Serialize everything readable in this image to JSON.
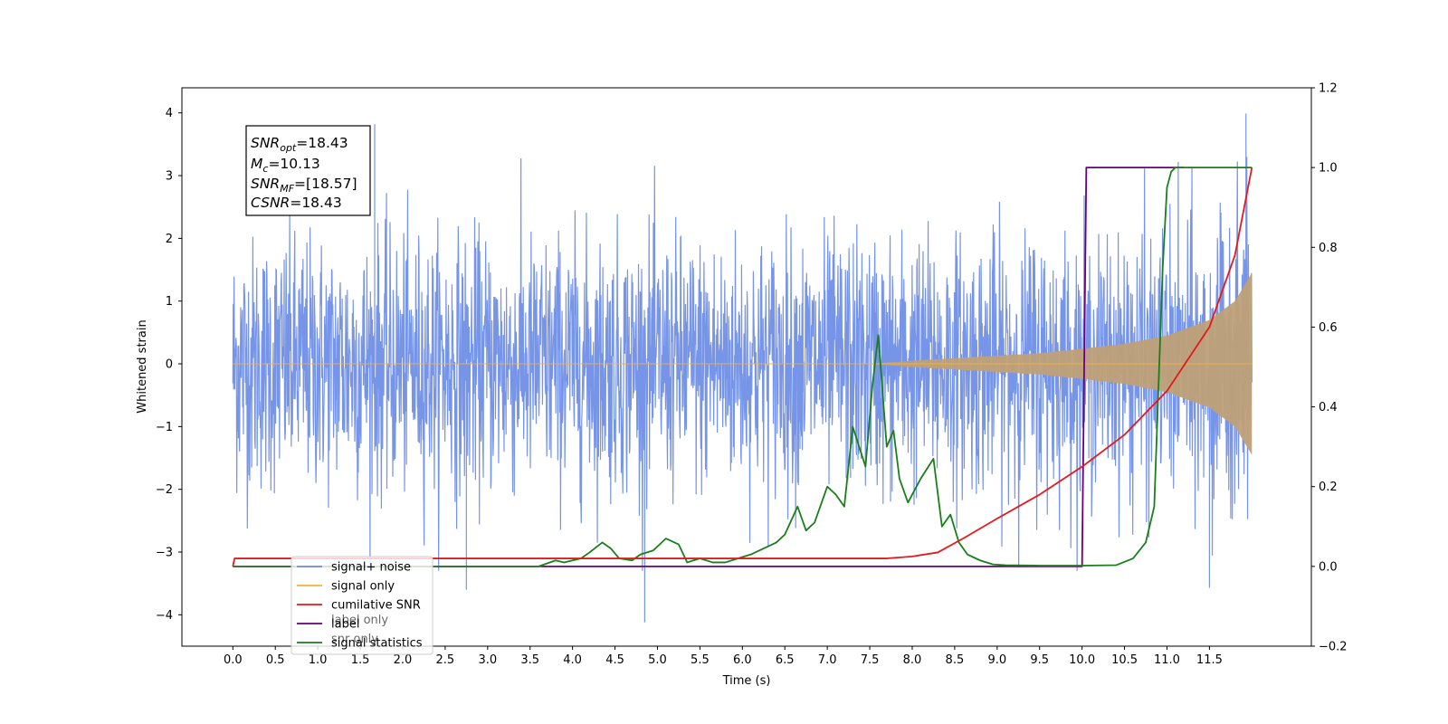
{
  "chart_data": {
    "type": "line",
    "xlabel": "Time (s)",
    "ylabel": "Whitened strain",
    "xlim": [
      -0.6,
      12.7
    ],
    "ylim": [
      -4.5,
      4.4
    ],
    "y2lim": [
      -0.2,
      1.2
    ],
    "x_ticks": [
      "0.0",
      "0.5",
      "1.0",
      "1.5",
      "2.0",
      "2.5",
      "3.0",
      "3.5",
      "4.0",
      "4.5",
      "5.0",
      "5.5",
      "6.0",
      "6.5",
      "7.0",
      "7.5",
      "8.0",
      "8.5",
      "9.0",
      "9.5",
      "10.0",
      "10.5",
      "11.0",
      "11.5"
    ],
    "y_ticks": [
      "4",
      "3",
      "2",
      "1",
      "0",
      "−1",
      "−2",
      "−3",
      "−4"
    ],
    "y2_ticks": [
      "1.2",
      "1.0",
      "0.8",
      "0.6",
      "0.4",
      "0.2",
      "0.0",
      "−0.2"
    ],
    "annotation": {
      "line1_main": "SNR",
      "line1_sub": "opt",
      "line1_value": "=18.43",
      "line2_main": "M",
      "line2_sub": "c",
      "line2_value": "=10.13",
      "line3_main": "SNR",
      "line3_sub": "MF",
      "line3_value": "=[18.57]",
      "line4_main": "CSNR",
      "line4_value": "=18.43"
    },
    "legend": {
      "placement": "lower-left",
      "entries": [
        "signal+ noise",
        "signal only",
        "cumilative SNR",
        "label",
        "signal statistics"
      ],
      "hidden_labels": [
        "label only",
        "snr only"
      ]
    },
    "colors": {
      "noise": "#6b8ce6",
      "signal": "#f5b041",
      "cum_snr": "#e31a1c",
      "label": "#6a0080",
      "stats": "#1a7f1a",
      "signal_fill": "#bfa077"
    },
    "series": [
      {
        "name": "signal+ noise",
        "axis": "left",
        "description_values": {
          "x_range": [
            0.0,
            12.0
          ],
          "typical_amplitude": 2.2,
          "extreme_points": [
            [
              1.67,
              3.82
            ],
            [
              4.85,
              -4.12
            ],
            [
              11.93,
              3.99
            ],
            [
              11.5,
              -3.57
            ],
            [
              2.75,
              -3.6
            ]
          ]
        }
      },
      {
        "name": "signal only",
        "axis": "left",
        "envelope": {
          "x": [
            0.0,
            7.5,
            8.0,
            8.5,
            9.0,
            9.5,
            10.0,
            10.5,
            11.0,
            11.5,
            11.8,
            12.0
          ],
          "amp": [
            0.0,
            0.0,
            0.05,
            0.09,
            0.13,
            0.17,
            0.24,
            0.32,
            0.45,
            0.7,
            1.0,
            1.45
          ]
        }
      },
      {
        "name": "cumilative SNR",
        "axis": "right",
        "x": [
          0.0,
          0.02,
          7.7,
          8.0,
          8.3,
          8.6,
          9.0,
          9.5,
          10.0,
          10.5,
          11.0,
          11.5,
          11.8,
          12.0
        ],
        "y": [
          0.0,
          0.02,
          0.02,
          0.025,
          0.035,
          0.07,
          0.12,
          0.18,
          0.25,
          0.33,
          0.44,
          0.6,
          0.78,
          1.0
        ]
      },
      {
        "name": "label",
        "axis": "right",
        "x": [
          0.0,
          10.0,
          10.05,
          11.2
        ],
        "y": [
          0.0,
          0.0,
          1.0,
          1.0
        ]
      },
      {
        "name": "signal statistics",
        "axis": "right",
        "x": [
          0.0,
          3.6,
          3.8,
          3.9,
          4.1,
          4.2,
          4.35,
          4.45,
          4.55,
          4.7,
          4.8,
          4.95,
          5.1,
          5.25,
          5.35,
          5.5,
          5.65,
          5.8,
          6.1,
          6.4,
          6.5,
          6.65,
          6.75,
          6.85,
          7.0,
          7.1,
          7.2,
          7.3,
          7.45,
          7.53,
          7.6,
          7.7,
          7.78,
          7.85,
          7.95,
          8.05,
          8.1,
          8.25,
          8.35,
          8.45,
          8.55,
          8.65,
          8.8,
          8.95,
          9.1,
          9.5,
          10.0,
          10.4,
          10.6,
          10.75,
          10.85,
          10.9,
          10.95,
          11.0,
          11.05,
          11.1,
          11.2,
          11.5,
          12.0
        ],
        "y": [
          0.0,
          0.0,
          0.015,
          0.01,
          0.02,
          0.035,
          0.06,
          0.045,
          0.02,
          0.015,
          0.03,
          0.04,
          0.07,
          0.055,
          0.01,
          0.02,
          0.01,
          0.01,
          0.03,
          0.06,
          0.08,
          0.15,
          0.09,
          0.11,
          0.2,
          0.18,
          0.15,
          0.35,
          0.25,
          0.45,
          0.58,
          0.3,
          0.34,
          0.22,
          0.16,
          0.2,
          0.22,
          0.27,
          0.1,
          0.13,
          0.06,
          0.03,
          0.015,
          0.005,
          0.003,
          0.002,
          0.002,
          0.003,
          0.02,
          0.06,
          0.15,
          0.45,
          0.75,
          0.95,
          0.99,
          1.0,
          1.0,
          1.0,
          1.0
        ]
      }
    ]
  }
}
